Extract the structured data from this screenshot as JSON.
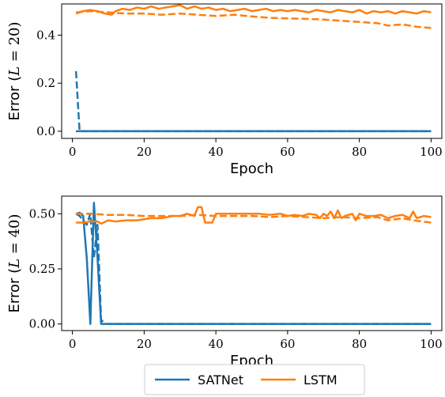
{
  "colors": {
    "SATNet": "#1f77b4",
    "LSTM": "#ff7f0e"
  },
  "legend": {
    "entries": [
      "SATNet",
      "LSTM"
    ],
    "placement": "bottom-center"
  },
  "chart_data": [
    {
      "type": "line",
      "xlabel": "Epoch",
      "ylabel": "Error (L = 20)",
      "ylabel_parts": {
        "prefix": "Error (",
        "var": "L",
        "rest": " = 20)"
      },
      "xlim": [
        -3,
        103
      ],
      "ylim": [
        -0.03,
        0.53
      ],
      "xticks": [
        0,
        20,
        40,
        60,
        80,
        100
      ],
      "xtick_labels": [
        "0",
        "20",
        "40",
        "60",
        "80",
        "100"
      ],
      "yticks": [
        0.0,
        0.2,
        0.4
      ],
      "ytick_labels": [
        "0.0",
        "0.2",
        "0.4"
      ],
      "series": [
        {
          "name": "SATNet",
          "color": "#1f77b4",
          "style": "solid",
          "x": [
            1,
            2,
            100
          ],
          "y": [
            0.0,
            0.0,
            0.0
          ]
        },
        {
          "name": "SATNet",
          "color": "#1f77b4",
          "style": "dashed",
          "x": [
            1,
            2,
            3,
            100
          ],
          "y": [
            0.25,
            0.0,
            0.0,
            0.0
          ]
        },
        {
          "name": "LSTM",
          "color": "#ff7f0e",
          "style": "solid",
          "x": [
            1,
            3,
            5,
            7,
            9,
            11,
            12,
            14,
            16,
            18,
            20,
            22,
            24,
            26,
            28,
            30,
            32,
            34,
            36,
            38,
            40,
            42,
            44,
            46,
            48,
            50,
            52,
            54,
            56,
            58,
            60,
            62,
            64,
            66,
            68,
            70,
            72,
            74,
            76,
            78,
            80,
            82,
            84,
            86,
            88,
            90,
            92,
            94,
            96,
            98,
            100
          ],
          "y": [
            0.49,
            0.5,
            0.505,
            0.5,
            0.49,
            0.485,
            0.5,
            0.51,
            0.505,
            0.515,
            0.51,
            0.52,
            0.51,
            0.515,
            0.52,
            0.525,
            0.51,
            0.52,
            0.51,
            0.515,
            0.505,
            0.51,
            0.5,
            0.505,
            0.51,
            0.5,
            0.505,
            0.51,
            0.5,
            0.505,
            0.5,
            0.505,
            0.5,
            0.495,
            0.505,
            0.5,
            0.495,
            0.505,
            0.5,
            0.495,
            0.505,
            0.49,
            0.5,
            0.495,
            0.5,
            0.49,
            0.5,
            0.495,
            0.49,
            0.5,
            0.495
          ]
        },
        {
          "name": "LSTM",
          "color": "#ff7f0e",
          "style": "dashed",
          "x": [
            1,
            5,
            10,
            15,
            20,
            25,
            30,
            35,
            40,
            45,
            50,
            55,
            60,
            65,
            70,
            75,
            80,
            85,
            88,
            92,
            96,
            100
          ],
          "y": [
            0.495,
            0.5,
            0.495,
            0.49,
            0.49,
            0.485,
            0.49,
            0.485,
            0.48,
            0.485,
            0.478,
            0.472,
            0.47,
            0.468,
            0.465,
            0.46,
            0.455,
            0.45,
            0.44,
            0.445,
            0.435,
            0.43
          ]
        }
      ]
    },
    {
      "type": "line",
      "xlabel": "Epoch",
      "ylabel": "Error (L = 40)",
      "ylabel_parts": {
        "prefix": "Error (",
        "var": "L",
        "rest": " = 40)"
      },
      "xlim": [
        -3,
        103
      ],
      "ylim": [
        -0.03,
        0.58
      ],
      "xticks": [
        0,
        20,
        40,
        60,
        80,
        100
      ],
      "xtick_labels": [
        "0",
        "20",
        "40",
        "60",
        "80",
        "100"
      ],
      "yticks": [
        0.0,
        0.25,
        0.5
      ],
      "ytick_labels": [
        "0.00",
        "0.25",
        "0.50"
      ],
      "series": [
        {
          "name": "SATNet",
          "color": "#1f77b4",
          "style": "solid",
          "x": [
            1,
            2,
            3,
            4,
            5,
            6,
            7,
            8,
            9,
            100
          ],
          "y": [
            0.5,
            0.505,
            0.49,
            0.3,
            0.0,
            0.55,
            0.3,
            0.0,
            0.0,
            0.0
          ]
        },
        {
          "name": "SATNet",
          "color": "#1f77b4",
          "style": "dashed",
          "x": [
            1,
            2,
            3,
            4,
            5,
            6,
            7,
            8,
            9,
            100
          ],
          "y": [
            0.5,
            0.49,
            0.47,
            0.45,
            0.5,
            0.3,
            0.45,
            0.02,
            0.0,
            0.0
          ]
        },
        {
          "name": "LSTM",
          "color": "#ff7f0e",
          "style": "solid",
          "x": [
            1,
            3,
            5,
            7,
            8,
            10,
            12,
            15,
            18,
            20,
            22,
            25,
            28,
            30,
            32,
            34,
            35,
            36,
            37,
            38,
            39,
            40,
            41,
            44,
            48,
            52,
            55,
            58,
            60,
            62,
            64,
            66,
            68,
            69,
            70,
            71,
            72,
            73,
            74,
            75,
            76,
            78,
            79,
            80,
            82,
            84,
            86,
            88,
            90,
            92,
            94,
            95,
            96,
            98,
            100
          ],
          "y": [
            0.46,
            0.46,
            0.465,
            0.465,
            0.455,
            0.47,
            0.465,
            0.47,
            0.47,
            0.475,
            0.48,
            0.48,
            0.49,
            0.49,
            0.5,
            0.49,
            0.53,
            0.53,
            0.46,
            0.46,
            0.46,
            0.5,
            0.5,
            0.5,
            0.5,
            0.5,
            0.495,
            0.5,
            0.49,
            0.495,
            0.49,
            0.5,
            0.495,
            0.48,
            0.5,
            0.49,
            0.51,
            0.48,
            0.515,
            0.48,
            0.49,
            0.5,
            0.47,
            0.5,
            0.49,
            0.49,
            0.495,
            0.48,
            0.49,
            0.495,
            0.48,
            0.51,
            0.48,
            0.49,
            0.485
          ]
        },
        {
          "name": "LSTM",
          "color": "#ff7f0e",
          "style": "dashed",
          "x": [
            1,
            5,
            10,
            15,
            20,
            25,
            30,
            35,
            40,
            45,
            50,
            55,
            60,
            65,
            70,
            75,
            80,
            85,
            88,
            92,
            95,
            100
          ],
          "y": [
            0.5,
            0.5,
            0.495,
            0.495,
            0.49,
            0.49,
            0.49,
            0.495,
            0.49,
            0.49,
            0.49,
            0.485,
            0.49,
            0.485,
            0.48,
            0.485,
            0.48,
            0.485,
            0.47,
            0.48,
            0.47,
            0.46
          ]
        }
      ]
    }
  ]
}
